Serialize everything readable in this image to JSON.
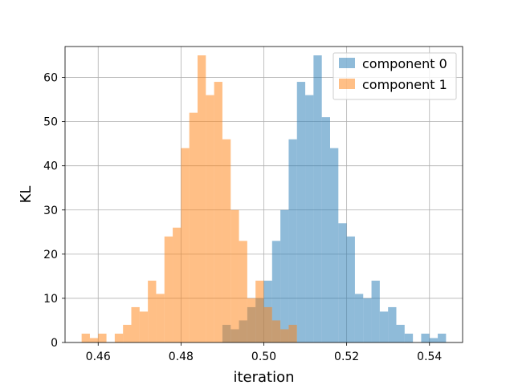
{
  "chart_data": {
    "type": "bar",
    "subtype": "overlapping-histogram",
    "title": "",
    "xlabel": "iteration",
    "ylabel": "KL",
    "xlim": [
      0.452,
      0.548
    ],
    "ylim": [
      0,
      67
    ],
    "xticks": [
      0.46,
      0.48,
      0.5,
      0.52,
      0.54
    ],
    "xtick_labels": [
      "0.46",
      "0.48",
      "0.50",
      "0.52",
      "0.54"
    ],
    "yticks": [
      0,
      10,
      20,
      30,
      40,
      50,
      60
    ],
    "ytick_labels": [
      "0",
      "10",
      "20",
      "30",
      "40",
      "50",
      "60"
    ],
    "grid": true,
    "legend_position": "top-right",
    "series": [
      {
        "name": "component 0",
        "color": "#1f77b4",
        "alpha": 0.5,
        "bin_edges": [
          0.49,
          0.492,
          0.494,
          0.496,
          0.498,
          0.5,
          0.502,
          0.504,
          0.506,
          0.508,
          0.51,
          0.512,
          0.514,
          0.516,
          0.518,
          0.52,
          0.522,
          0.524,
          0.526,
          0.528,
          0.53,
          0.532,
          0.534,
          0.536,
          0.538,
          0.54,
          0.542,
          0.544
        ],
        "counts": [
          4,
          3,
          5,
          8,
          10,
          14,
          23,
          30,
          46,
          59,
          56,
          65,
          51,
          44,
          27,
          24,
          11,
          10,
          14,
          7,
          8,
          4,
          2,
          0,
          2,
          1,
          2
        ]
      },
      {
        "name": "component 1",
        "color": "#ff7f0e",
        "alpha": 0.5,
        "bin_edges": [
          0.456,
          0.458,
          0.46,
          0.462,
          0.464,
          0.466,
          0.468,
          0.47,
          0.472,
          0.474,
          0.476,
          0.478,
          0.48,
          0.482,
          0.484,
          0.486,
          0.488,
          0.49,
          0.492,
          0.494,
          0.496,
          0.498,
          0.5,
          0.502,
          0.504,
          0.506,
          0.508,
          0.51
        ],
        "counts": [
          2,
          1,
          2,
          0,
          2,
          4,
          8,
          7,
          14,
          11,
          24,
          26,
          44,
          52,
          65,
          56,
          59,
          46,
          30,
          23,
          10,
          14,
          8,
          5,
          3,
          4,
          0
        ]
      }
    ]
  }
}
